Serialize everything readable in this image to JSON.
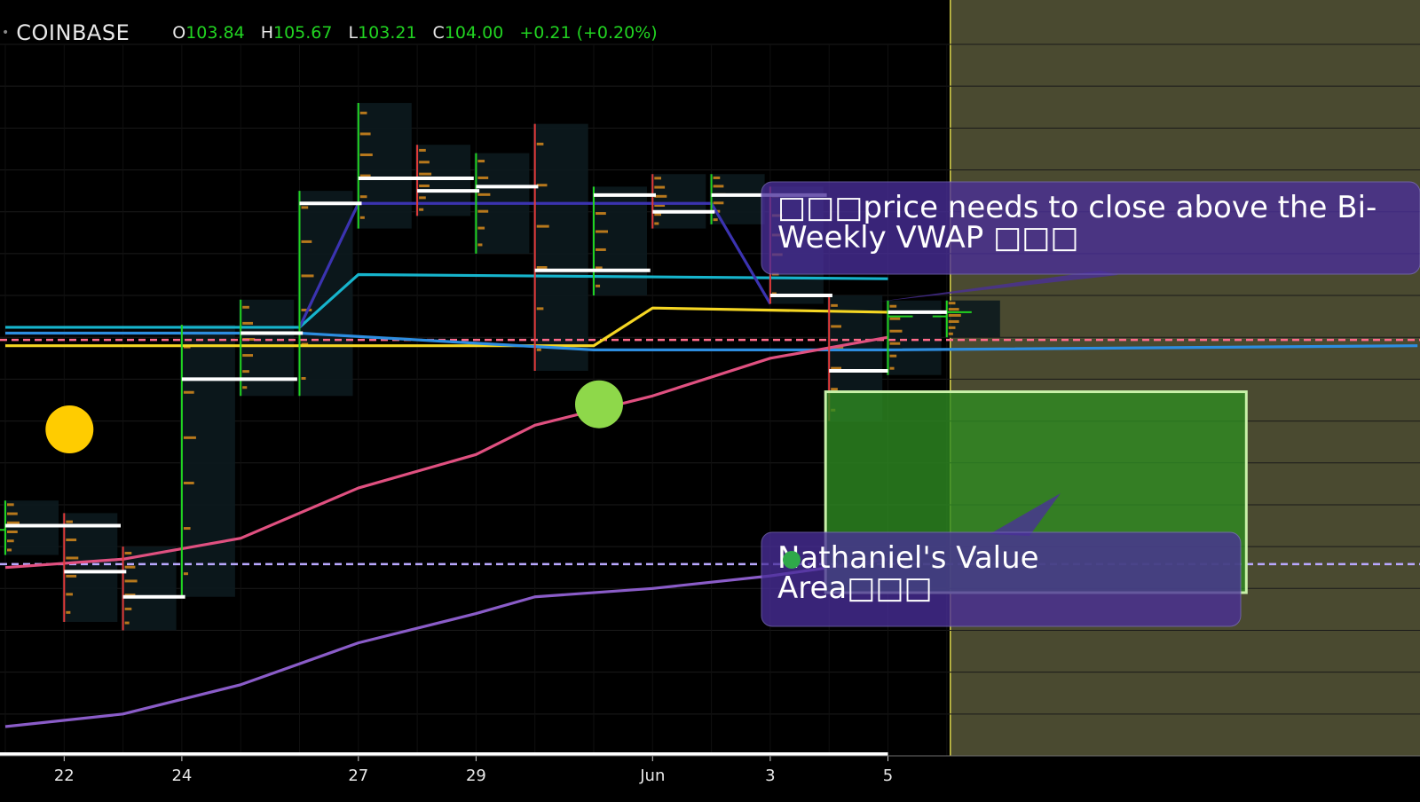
{
  "header": {
    "exchange": "COINBASE",
    "open_label": "O",
    "open": "103.84",
    "high_label": "H",
    "high": "105.67",
    "low_label": "L",
    "low": "103.21",
    "close_label": "C",
    "close": "104.00",
    "change": "+0.21 (+0.20%)"
  },
  "colors": {
    "background": "#000000",
    "up": "#21d321",
    "down": "#e23a3a",
    "future_zone": "#4a4a30",
    "value_area_fill": "#2e8b22",
    "value_area_border": "#c8f0a8",
    "callout": "#4a2f9a",
    "vwap_yellow": "#f5d623",
    "vwap_cyan": "#16b4cc",
    "blue_line": "#2d8de0",
    "pink_line": "#e05080",
    "purple_line": "#8a5cc8",
    "navy_line": "#3b33b0"
  },
  "annotations": {
    "callout_top": "□□□price needs to close above the Bi-Weekly VWAP □□□",
    "callout_bottom_icon": "money-bag-icon",
    "callout_bottom": "Nathaniel's Value Area□□□",
    "markers": [
      {
        "date": "May 22",
        "price": 101.9,
        "color": "#ffcc00"
      },
      {
        "date": "May 31",
        "price": 102.2,
        "color": "#8ed84a"
      }
    ]
  },
  "chart_data": {
    "type": "candlestick",
    "x_axis_ticks": [
      "22",
      "24",
      "27",
      "29",
      "Jun",
      "3",
      "5"
    ],
    "xlim": [
      "May 21",
      "Jun 14"
    ],
    "ylim": [
      98.0,
      106.5
    ],
    "grid": true,
    "candles": [
      {
        "date": "May 21",
        "open": 100.7,
        "high": 101.05,
        "low": 100.4,
        "close": 100.75
      },
      {
        "date": "May 22",
        "open": 100.75,
        "high": 100.9,
        "low": 99.6,
        "close": 100.2
      },
      {
        "date": "May 23",
        "open": 100.2,
        "high": 100.5,
        "low": 99.5,
        "close": 99.9
      },
      {
        "date": "May 24",
        "open": 99.9,
        "high": 103.15,
        "low": 99.9,
        "close": 102.5
      },
      {
        "date": "May 25",
        "open": 102.5,
        "high": 103.45,
        "low": 102.3,
        "close": 103.05
      },
      {
        "date": "May 26",
        "open": 103.05,
        "high": 104.75,
        "low": 102.3,
        "close": 104.6
      },
      {
        "date": "May 27",
        "open": 104.6,
        "high": 105.8,
        "low": 104.3,
        "close": 104.9
      },
      {
        "date": "May 28",
        "open": 104.9,
        "high": 105.3,
        "low": 104.45,
        "close": 104.75
      },
      {
        "date": "May 29",
        "open": 104.75,
        "high": 105.2,
        "low": 104.0,
        "close": 104.8
      },
      {
        "date": "May 30",
        "open": 104.8,
        "high": 105.55,
        "low": 102.6,
        "close": 103.8
      },
      {
        "date": "May 31",
        "open": 103.8,
        "high": 104.8,
        "low": 103.5,
        "close": 104.7
      },
      {
        "date": "Jun 1",
        "open": 104.7,
        "high": 104.95,
        "low": 104.3,
        "close": 104.5
      },
      {
        "date": "Jun 2",
        "open": 104.5,
        "high": 104.95,
        "low": 104.35,
        "close": 104.7
      },
      {
        "date": "Jun 3",
        "open": 104.7,
        "high": 104.8,
        "low": 103.4,
        "close": 103.5
      },
      {
        "date": "Jun 4",
        "open": 103.5,
        "high": 103.5,
        "low": 102.0,
        "close": 102.6
      },
      {
        "date": "Jun 5",
        "open": 102.6,
        "high": 103.44,
        "low": 102.55,
        "close": 103.25
      },
      {
        "date": "Jun 6",
        "open": 103.25,
        "high": 103.44,
        "low": 103.0,
        "close": 103.3
      }
    ],
    "series": [
      {
        "color": "#f5d623",
        "points": [
          [
            "May 21",
            102.9
          ],
          [
            "May 31",
            102.9
          ],
          [
            "Jun 1",
            103.35
          ],
          [
            "Jun 5",
            103.3
          ]
        ]
      },
      {
        "color": "#16b4cc",
        "points": [
          [
            "May 21",
            103.12
          ],
          [
            "May 26",
            103.12
          ],
          [
            "May 27",
            103.75
          ],
          [
            "Jun 5",
            103.7
          ]
        ]
      },
      {
        "color": "#3b33b0",
        "points": [
          [
            "May 26",
            103.12
          ],
          [
            "May 27",
            104.6
          ],
          [
            "Jun 2",
            104.6
          ],
          [
            "Jun 3",
            103.4
          ]
        ]
      },
      {
        "color": "#2d8de0",
        "points": [
          [
            "May 21",
            103.05
          ],
          [
            "May 26",
            103.05
          ],
          [
            "May 31",
            102.85
          ],
          [
            "Jun 5",
            102.85
          ],
          [
            "Jun 14",
            102.9
          ]
        ]
      },
      {
        "color": "#e05080",
        "points": [
          [
            "May 21",
            100.25
          ],
          [
            "May 23",
            100.35
          ],
          [
            "May 25",
            100.6
          ],
          [
            "May 27",
            101.2
          ],
          [
            "May 29",
            101.6
          ],
          [
            "May 30",
            101.95
          ],
          [
            "Jun 1",
            102.3
          ],
          [
            "Jun 3",
            102.75
          ],
          [
            "Jun 5",
            103.0
          ]
        ]
      },
      {
        "color": "#8a5cc8",
        "points": [
          [
            "May 21",
            98.35
          ],
          [
            "May 23",
            98.5
          ],
          [
            "May 25",
            98.85
          ],
          [
            "May 27",
            99.35
          ],
          [
            "May 29",
            99.7
          ],
          [
            "May 30",
            99.9
          ],
          [
            "Jun 1",
            100.0
          ],
          [
            "Jun 3",
            100.15
          ],
          [
            "Jun 5",
            100.35
          ]
        ]
      }
    ],
    "horizontal_levels": [
      {
        "price": 102.97,
        "color": "#ff6b8a",
        "style": "dashed"
      },
      {
        "price": 100.29,
        "color": "#b9a8ff",
        "style": "dashed"
      }
    ],
    "value_area": {
      "from": "Jun 4",
      "to": "Jun 11",
      "high": 102.35,
      "low": 99.95
    },
    "future_zone_start": "Jun 6"
  }
}
